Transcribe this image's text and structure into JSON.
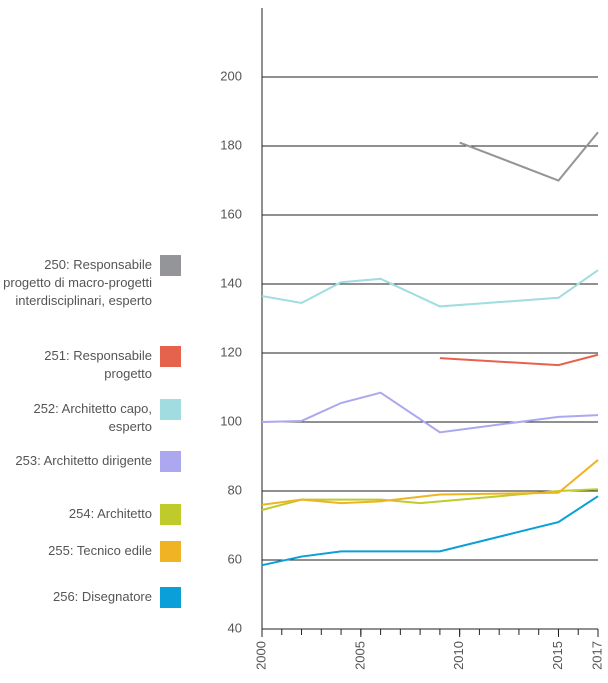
{
  "chart_data": {
    "type": "line",
    "xlim": [
      2000,
      2017
    ],
    "xticks": [
      2000,
      2005,
      2010,
      2015,
      2017
    ],
    "ylim": [
      40,
      220
    ],
    "yticks": [
      40,
      60,
      80,
      100,
      120,
      140,
      160,
      180,
      200
    ],
    "grid": true,
    "series": [
      {
        "name": "250: Responsabile progetto di macro-progetti interdisci­plinari, esperto",
        "color": "#939598",
        "x": [
          2010,
          2015,
          2017
        ],
        "values": [
          181,
          170,
          184
        ]
      },
      {
        "name": "251: Responsabile progetto",
        "color": "#e5634d",
        "x": [
          2009,
          2015,
          2017
        ],
        "values": [
          118.5,
          116.5,
          119.5
        ]
      },
      {
        "name": "252: Architetto capo, esperto",
        "color": "#a0dce0",
        "x": [
          2000,
          2002,
          2004,
          2006,
          2009,
          2015,
          2017
        ],
        "values": [
          136.5,
          134.5,
          140.5,
          141.5,
          133.5,
          136,
          144
        ]
      },
      {
        "name": "253: Architetto dirigente",
        "color": "#aba8ef",
        "x": [
          2000,
          2002,
          2004,
          2006,
          2009,
          2015,
          2017
        ],
        "values": [
          100,
          100.3,
          105.5,
          108.5,
          97,
          101.5,
          102
        ]
      },
      {
        "name": "254: Architetto",
        "color": "#bfcb2a",
        "x": [
          2000,
          2002,
          2004,
          2006,
          2008,
          2015,
          2017
        ],
        "values": [
          74.5,
          77.5,
          77.5,
          77.5,
          76.5,
          80,
          80.5
        ]
      },
      {
        "name": "255: Tecnico edile",
        "color": "#f0b323",
        "x": [
          2000,
          2002,
          2004,
          2006,
          2009,
          2015,
          2017
        ],
        "values": [
          76,
          77.5,
          76.5,
          77,
          79,
          79.5,
          89
        ]
      },
      {
        "name": "256: Disegnatore",
        "color": "#0a9fd8",
        "x": [
          2000,
          2002,
          2004,
          2009,
          2015,
          2017
        ],
        "values": [
          58.5,
          61,
          62.5,
          62.5,
          71,
          78.5
        ]
      }
    ]
  }
}
